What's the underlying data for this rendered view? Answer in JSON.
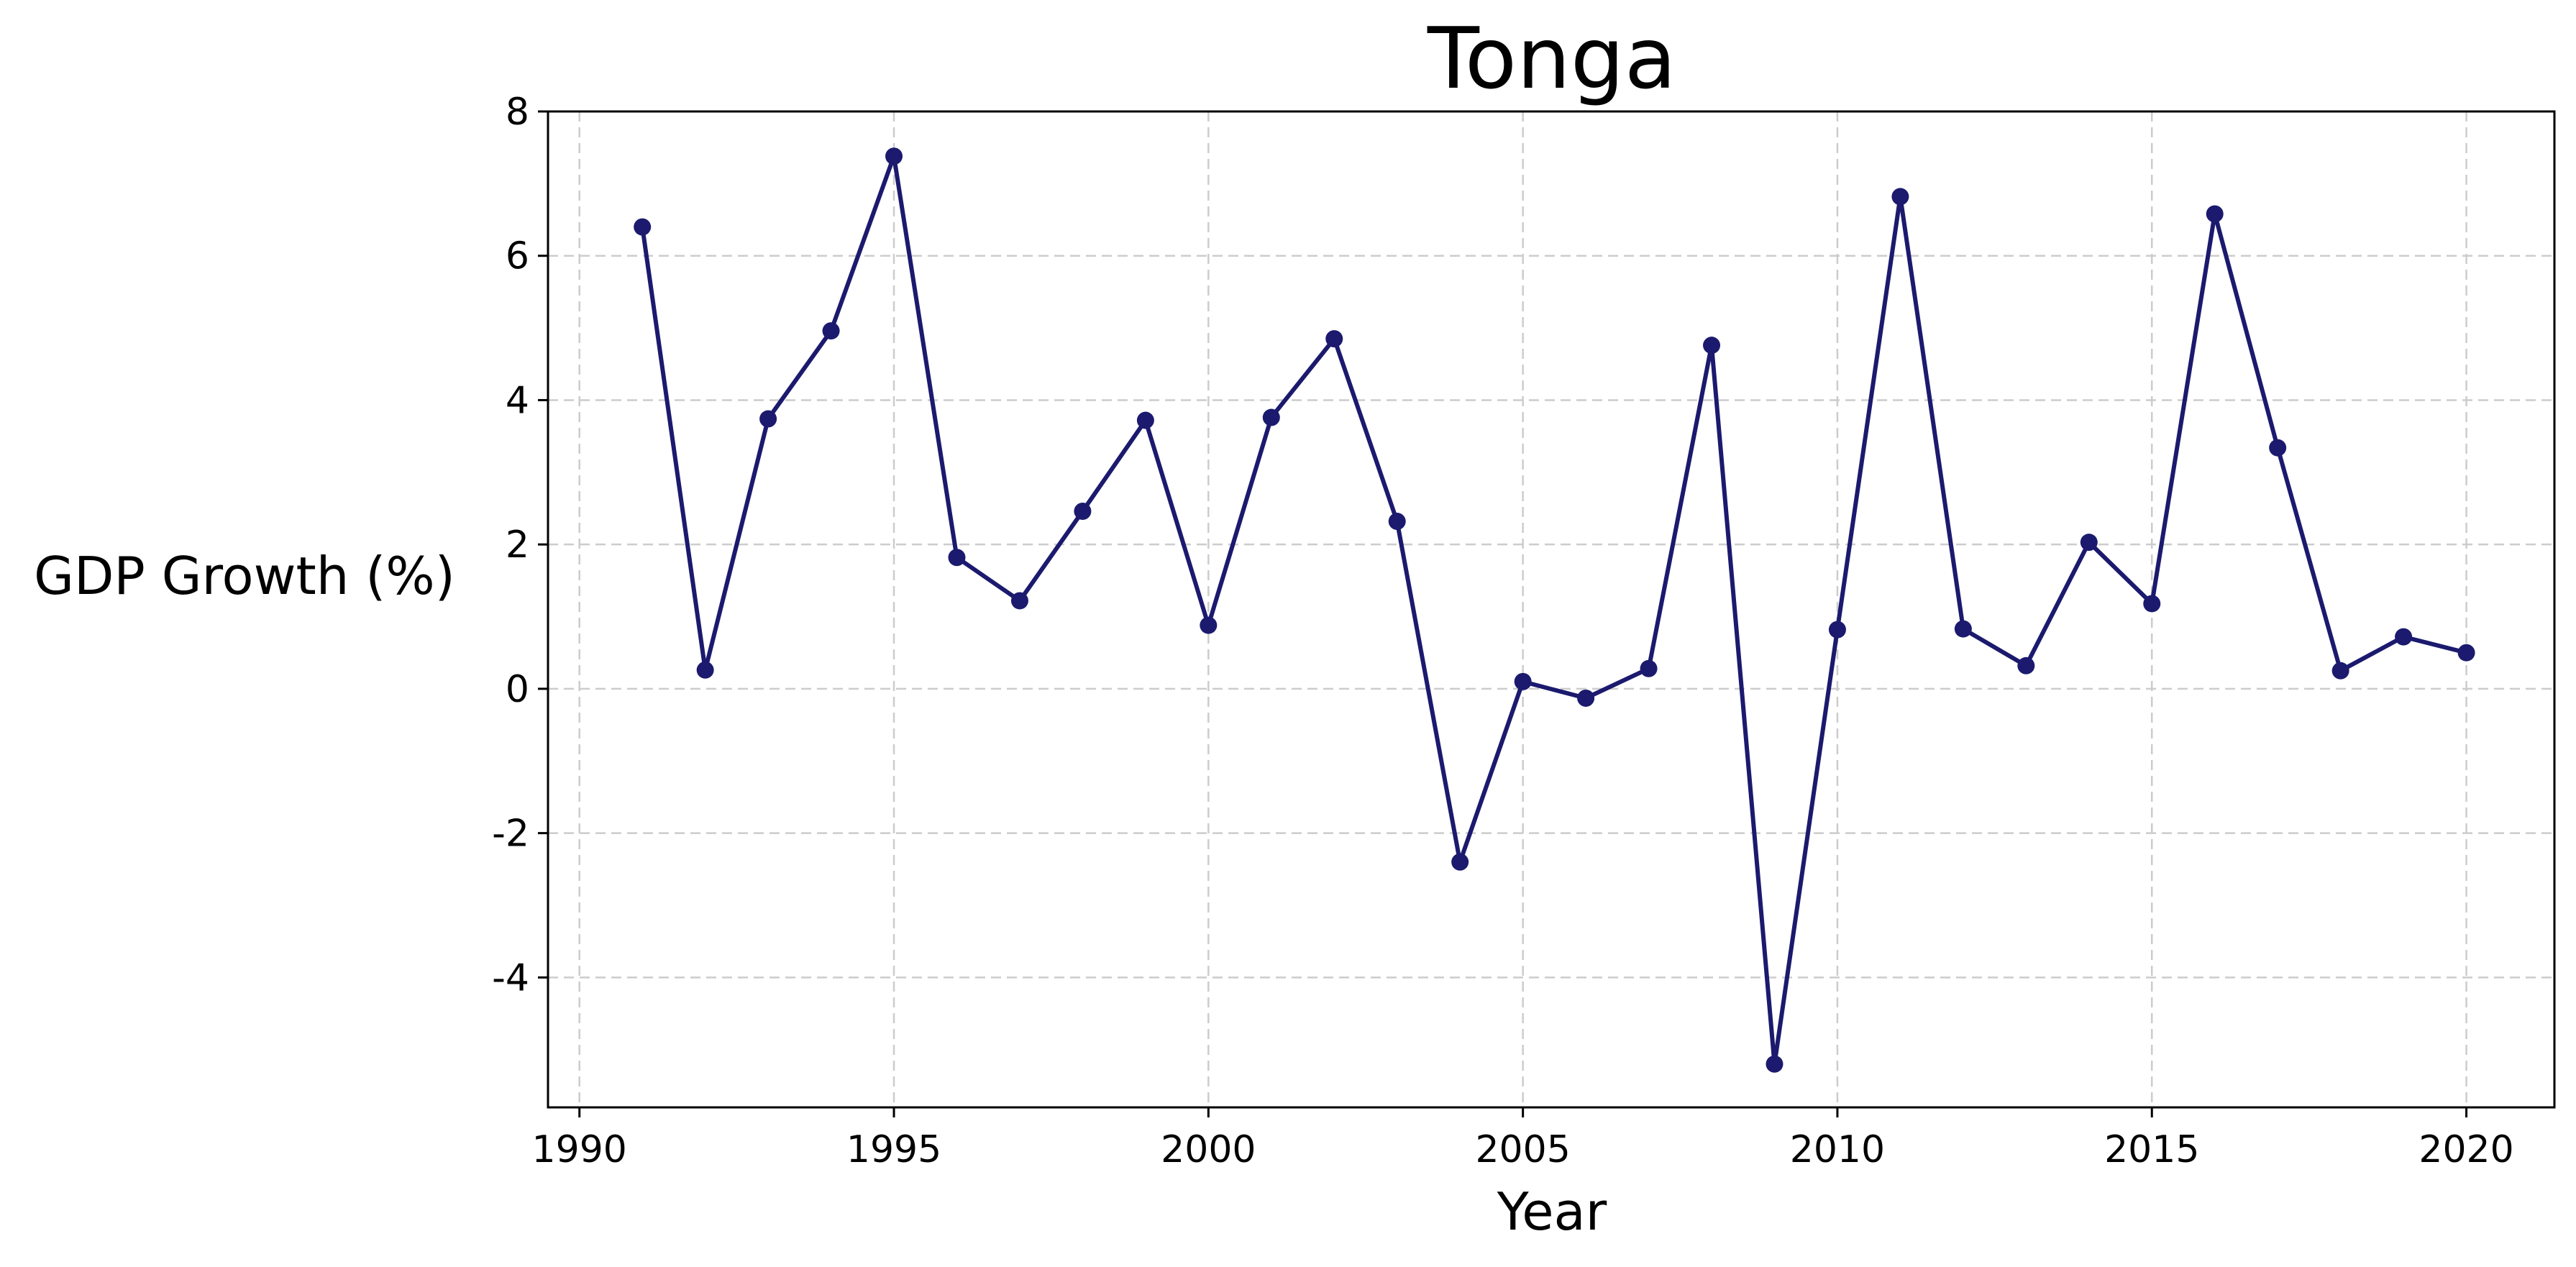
{
  "chart_data": {
    "type": "line",
    "title": "Tonga",
    "xlabel": "Year",
    "ylabel": "GDP Growth (%)",
    "xlim": [
      1989.5,
      2021.4
    ],
    "ylim": [
      -5.8,
      8
    ],
    "x_ticks": [
      1990,
      1995,
      2000,
      2005,
      2010,
      2015,
      2020
    ],
    "y_ticks": [
      -4,
      -2,
      0,
      2,
      4,
      6,
      8
    ],
    "grid": true,
    "legend": "none",
    "color": "#1b1a6e",
    "x": [
      1991,
      1992,
      1993,
      1994,
      1995,
      1996,
      1997,
      1998,
      1999,
      2000,
      2001,
      2002,
      2003,
      2004,
      2005,
      2006,
      2007,
      2008,
      2009,
      2010,
      2011,
      2012,
      2013,
      2014,
      2015,
      2016,
      2017,
      2018,
      2019,
      2020
    ],
    "series": [
      {
        "values": [
          6.4,
          0.26,
          3.74,
          4.96,
          7.38,
          1.82,
          1.22,
          2.46,
          3.72,
          0.88,
          3.76,
          4.85,
          2.32,
          -2.4,
          0.1,
          -0.13,
          0.28,
          4.76,
          -5.2,
          0.82,
          6.82,
          0.83,
          0.32,
          2.03,
          1.18,
          6.58,
          3.34,
          0.25,
          0.72,
          0.5
        ]
      }
    ]
  }
}
